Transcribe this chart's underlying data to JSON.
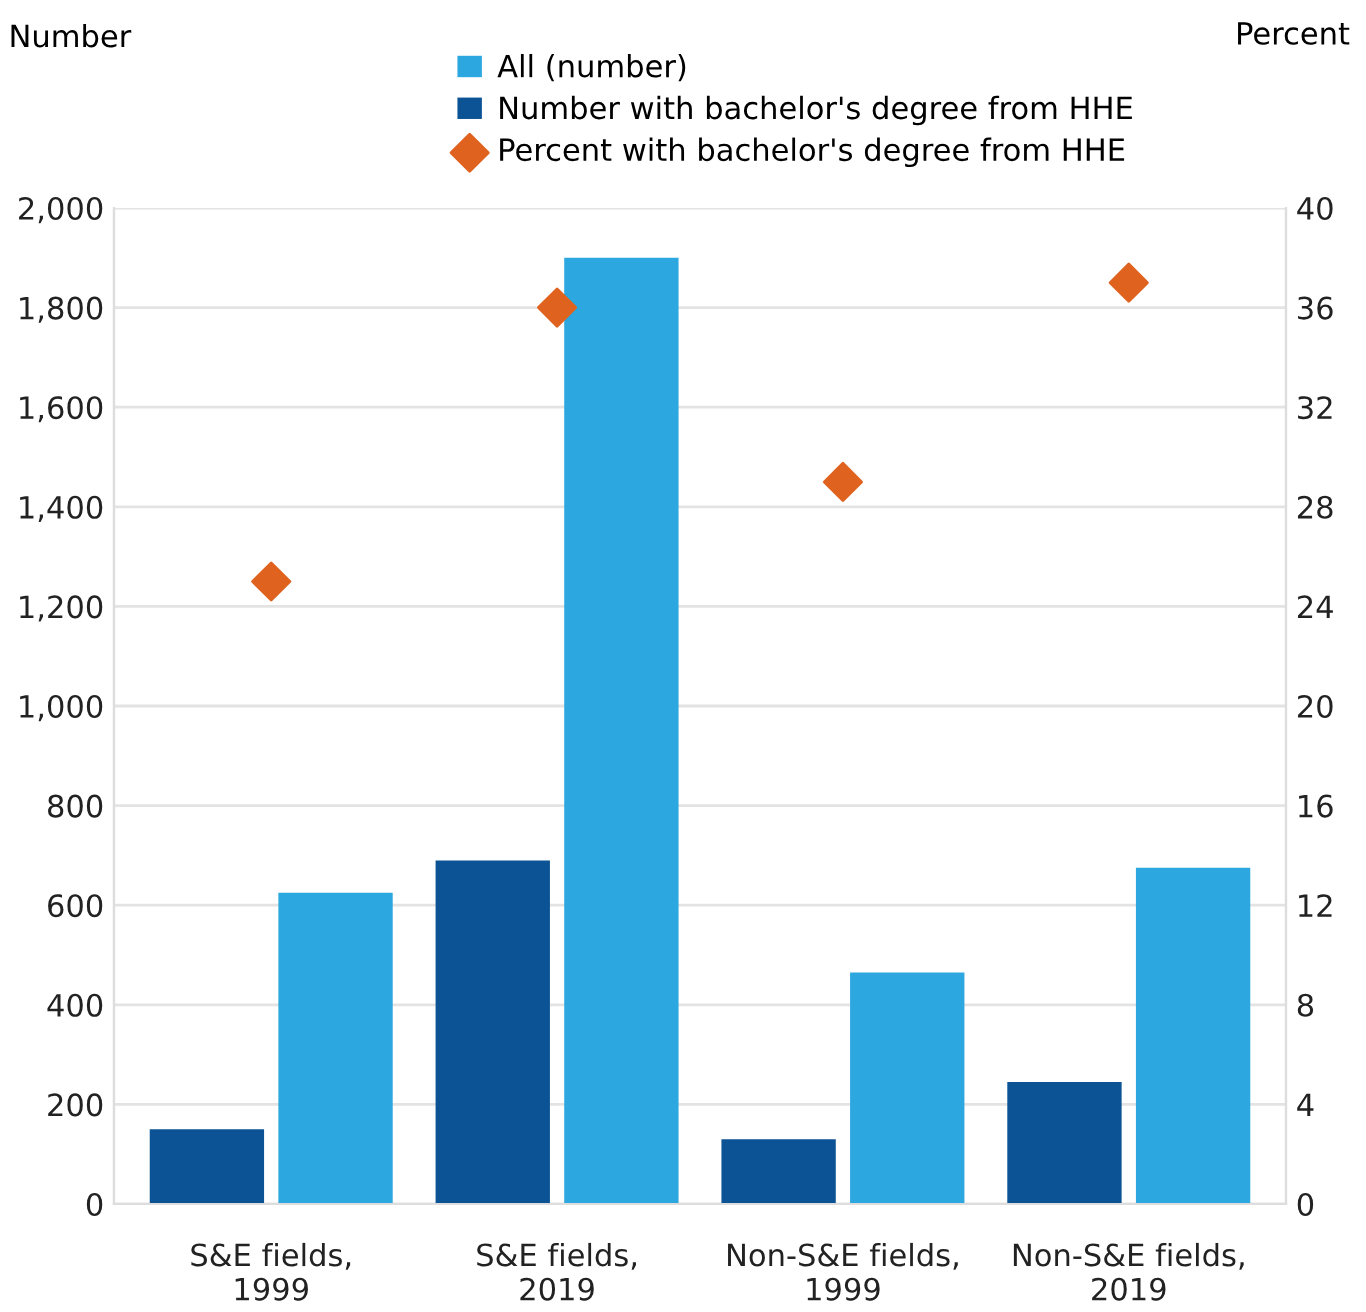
{
  "chart_data": {
    "type": "bar",
    "ylabel": "Number",
    "y2label": "Percent",
    "categories": [
      "S&E fields,\n1999",
      "S&E fields,\n2019",
      "Non-S&E fields,\n1999",
      "Non-S&E fields,\n2019"
    ],
    "series": [
      {
        "name": "All (number)",
        "color": "#2ca7df",
        "values": [
          625,
          1900,
          465,
          675
        ]
      },
      {
        "name": "Number with bachelor's degree from HHE",
        "color": "#0b5394",
        "values": [
          150,
          690,
          130,
          245
        ]
      },
      {
        "name": "Percent with bachelor's degree from HHE",
        "type": "scatter",
        "axis": "y2",
        "marker": "diamond",
        "color": "#e0621f",
        "values": [
          25,
          36,
          29,
          37
        ]
      }
    ],
    "ylim": [
      0,
      2000
    ],
    "yticks": [
      {
        "value": 0,
        "label": "0"
      },
      {
        "value": 200,
        "label": "200"
      },
      {
        "value": 400,
        "label": "400"
      },
      {
        "value": 600,
        "label": "600"
      },
      {
        "value": 800,
        "label": "800"
      },
      {
        "value": 1000,
        "label": "1,000"
      },
      {
        "value": 1200,
        "label": "1,200"
      },
      {
        "value": 1400,
        "label": "1,400"
      },
      {
        "value": 1600,
        "label": "1,600"
      },
      {
        "value": 1800,
        "label": "1,800"
      },
      {
        "value": 2000,
        "label": "2,000"
      }
    ],
    "y2lim": [
      0,
      40
    ],
    "y2ticks": [
      0,
      4,
      8,
      12,
      16,
      20,
      24,
      28,
      32,
      36,
      40
    ],
    "grid": "y",
    "legend": "top"
  }
}
